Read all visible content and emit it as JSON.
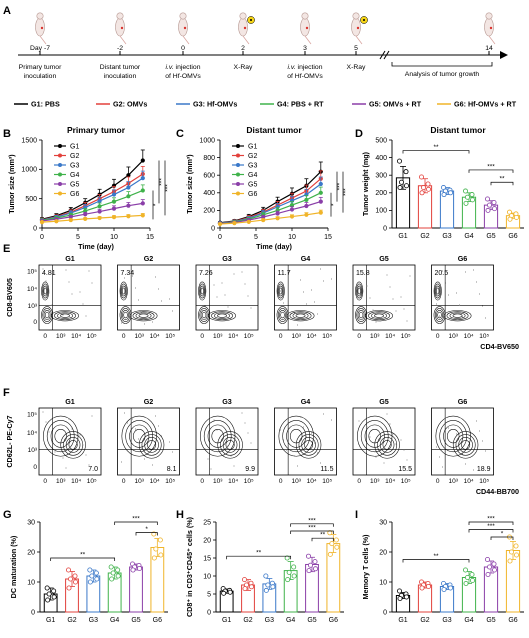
{
  "colors": {
    "G1": "#000000",
    "G2": "#e2403b",
    "G3": "#3a78c9",
    "G4": "#3fb24a",
    "G5": "#8a3ea8",
    "G6": "#f0b429"
  },
  "legend": [
    {
      "key": "G1",
      "label": "G1: PBS"
    },
    {
      "key": "G2",
      "label": "G2: OMVs"
    },
    {
      "key": "G3",
      "label": "G3: Hf-OMVs"
    },
    {
      "key": "G4",
      "label": "G4: PBS + RT"
    },
    {
      "key": "G5",
      "label": "G5: OMVs + RT"
    },
    {
      "key": "G6",
      "label": "G6: Hf-OMVs + RT"
    }
  ],
  "panel_letters": {
    "A": "A",
    "B": "B",
    "C": "C",
    "D": "D",
    "E": "E",
    "F": "F",
    "G": "G",
    "H": "H",
    "I": "I"
  },
  "timeline": {
    "events": [
      {
        "day": "Day -7",
        "label": "Primary tumor|inoculation"
      },
      {
        "day": "-2",
        "label": "Distant tumor|inoculation"
      },
      {
        "day": "0",
        "label": "i.v. injection|of Hf-OMVs"
      },
      {
        "day": "2",
        "label": "X-Ray"
      },
      {
        "day": "3",
        "label": "i.v. injection|of Hf-OMVs"
      },
      {
        "day": "5",
        "label": "X-Ray"
      },
      {
        "day": "14",
        "label": ""
      }
    ],
    "analysis_label": "Analysis of tumor growth"
  },
  "chart_data": [
    {
      "id": "B",
      "type": "line",
      "title": "Primary tumor",
      "xlabel": "Time (day)",
      "ylabel": "Tumor size (mm³)",
      "xlim": [
        0,
        15
      ],
      "ylim": [
        0,
        1500
      ],
      "xticks": [
        0,
        5,
        10,
        15
      ],
      "yticks": [
        0,
        500,
        1000,
        1500
      ],
      "x": [
        0,
        2,
        4,
        6,
        8,
        10,
        12,
        14
      ],
      "series": [
        {
          "name": "G1",
          "values": [
            150,
            210,
            300,
            430,
            570,
            720,
            900,
            1150
          ],
          "err": [
            25,
            35,
            50,
            70,
            90,
            110,
            140,
            180
          ]
        },
        {
          "name": "G2",
          "values": [
            140,
            195,
            270,
            380,
            500,
            620,
            760,
            920
          ],
          "err": [
            20,
            30,
            40,
            55,
            70,
            90,
            110,
            130
          ]
        },
        {
          "name": "G3",
          "values": [
            135,
            185,
            255,
            350,
            460,
            570,
            690,
            850
          ],
          "err": [
            20,
            28,
            38,
            50,
            65,
            80,
            100,
            120
          ]
        },
        {
          "name": "G4",
          "values": [
            130,
            170,
            220,
            290,
            370,
            450,
            540,
            640
          ],
          "err": [
            18,
            25,
            32,
            42,
            55,
            65,
            80,
            95
          ]
        },
        {
          "name": "G5",
          "values": [
            120,
            150,
            190,
            235,
            280,
            330,
            380,
            420
          ],
          "err": [
            15,
            20,
            25,
            32,
            40,
            48,
            55,
            65
          ]
        },
        {
          "name": "G6",
          "values": [
            100,
            115,
            135,
            155,
            170,
            185,
            200,
            215
          ],
          "err": [
            12,
            14,
            17,
            20,
            22,
            25,
            28,
            32
          ]
        }
      ],
      "significance": [
        "*",
        "***",
        "***"
      ]
    },
    {
      "id": "C",
      "type": "line",
      "title": "Distant tumor",
      "xlabel": "Time (day)",
      "ylabel": "Tumor size (mm³)",
      "xlim": [
        0,
        15
      ],
      "ylim": [
        0,
        1000
      ],
      "xticks": [
        0,
        5,
        10,
        15
      ],
      "yticks": [
        0,
        200,
        400,
        600,
        800,
        1000
      ],
      "x": [
        0,
        2,
        4,
        6,
        8,
        10,
        12,
        14
      ],
      "series": [
        {
          "name": "G1",
          "values": [
            60,
            80,
            130,
            200,
            300,
            390,
            480,
            640
          ],
          "err": [
            12,
            15,
            25,
            35,
            50,
            65,
            80,
            110
          ]
        },
        {
          "name": "G2",
          "values": [
            55,
            75,
            120,
            180,
            260,
            340,
            420,
            560
          ],
          "err": [
            10,
            14,
            22,
            30,
            42,
            55,
            68,
            90
          ]
        },
        {
          "name": "G3",
          "values": [
            55,
            72,
            110,
            170,
            240,
            310,
            380,
            500
          ],
          "err": [
            10,
            13,
            20,
            28,
            38,
            50,
            60,
            80
          ]
        },
        {
          "name": "G4",
          "values": [
            52,
            68,
            100,
            150,
            200,
            260,
            320,
            400
          ],
          "err": [
            9,
            12,
            18,
            24,
            32,
            40,
            50,
            65
          ]
        },
        {
          "name": "G5",
          "values": [
            50,
            62,
            90,
            125,
            165,
            210,
            250,
            300
          ],
          "err": [
            8,
            11,
            15,
            20,
            26,
            32,
            40,
            48
          ]
        },
        {
          "name": "G6",
          "values": [
            45,
            55,
            70,
            90,
            110,
            130,
            150,
            175
          ],
          "err": [
            7,
            9,
            12,
            15,
            18,
            20,
            24,
            28
          ]
        }
      ],
      "significance": [
        "*",
        "***",
        "***"
      ]
    },
    {
      "id": "D",
      "type": "bar",
      "title": "Distant tumor",
      "ylabel": "Tumor weight (mg)",
      "ylim": [
        0,
        500
      ],
      "yticks": [
        0,
        100,
        200,
        300,
        400,
        500
      ],
      "categories": [
        "G1",
        "G2",
        "G3",
        "G4",
        "G5",
        "G6"
      ],
      "values": [
        285,
        240,
        210,
        175,
        130,
        70
      ],
      "err": [
        65,
        40,
        20,
        25,
        25,
        15
      ],
      "points": [
        [
          380,
          320,
          260,
          240,
          230
        ],
        [
          290,
          250,
          230,
          220,
          200
        ],
        [
          230,
          215,
          210,
          200,
          190
        ],
        [
          210,
          190,
          175,
          160,
          140
        ],
        [
          165,
          145,
          130,
          110,
          100
        ],
        [
          90,
          80,
          70,
          60,
          50
        ]
      ],
      "brackets": [
        {
          "from": 0,
          "to": 3,
          "label": "**",
          "y": 440
        },
        {
          "from": 3,
          "to": 5,
          "label": "***",
          "y": 330
        },
        {
          "from": 4,
          "to": 5,
          "label": "**",
          "y": 260
        }
      ]
    },
    {
      "id": "G",
      "type": "bar",
      "ylabel": "DC maturation (%)",
      "ylim": [
        0,
        30
      ],
      "yticks": [
        0,
        10,
        20,
        30
      ],
      "categories": [
        "G1",
        "G2",
        "G3",
        "G4",
        "G5",
        "G6"
      ],
      "values": [
        6,
        11,
        12,
        13,
        15,
        21.5
      ],
      "err": [
        2,
        2.5,
        2,
        2,
        1,
        3
      ],
      "points": [
        [
          8,
          7,
          6,
          5,
          4
        ],
        [
          14,
          12,
          11,
          10,
          8
        ],
        [
          14,
          13,
          12,
          11,
          10
        ],
        [
          15,
          14,
          13,
          12,
          11
        ],
        [
          16,
          15.5,
          15,
          14.5,
          14
        ],
        [
          26,
          24,
          21,
          19,
          18
        ]
      ],
      "brackets": [
        {
          "from": 0,
          "to": 3,
          "label": "**",
          "y": 18
        },
        {
          "from": 3,
          "to": 5,
          "label": "***",
          "y": 30
        },
        {
          "from": 4,
          "to": 5,
          "label": "*",
          "y": 26.5
        }
      ]
    },
    {
      "id": "H",
      "type": "bar",
      "ylabel": "CD8⁺ in CD3⁺CD45⁺ cells (%)",
      "ylim": [
        0,
        25
      ],
      "yticks": [
        0,
        5,
        10,
        15,
        20,
        25
      ],
      "categories": [
        "G1",
        "G2",
        "G3",
        "G4",
        "G5",
        "G6"
      ],
      "values": [
        5.8,
        7.5,
        7.8,
        11.5,
        13.2,
        19
      ],
      "err": [
        0.6,
        1.5,
        1.5,
        2.5,
        2,
        2.5
      ],
      "points": [
        [
          6.5,
          6,
          5.8,
          5.5,
          5.2
        ],
        [
          9,
          8,
          7.5,
          7,
          6.5
        ],
        [
          10,
          8,
          7.5,
          7,
          6
        ],
        [
          15,
          12.5,
          11,
          10,
          9
        ],
        [
          15.5,
          14,
          13,
          12,
          11.5
        ],
        [
          22,
          20,
          19,
          18,
          16
        ]
      ],
      "brackets": [
        {
          "from": 0,
          "to": 3,
          "label": "**",
          "y": 15.5
        },
        {
          "from": 3,
          "to": 5,
          "label": "***",
          "y": 24.5
        },
        {
          "from": 3,
          "to": 5,
          "label": "***",
          "y": 22.5
        },
        {
          "from": 4,
          "to": 5,
          "label": "**",
          "y": 20.5
        }
      ]
    },
    {
      "id": "I",
      "type": "bar",
      "ylabel": "Memory T cells (%)",
      "ylim": [
        0,
        30
      ],
      "yticks": [
        0,
        10,
        20,
        30
      ],
      "categories": [
        "G1",
        "G2",
        "G3",
        "G4",
        "G5",
        "G6"
      ],
      "values": [
        5.5,
        9,
        8.5,
        11.5,
        15,
        20.5
      ],
      "err": [
        1,
        1,
        1,
        2,
        2,
        3
      ],
      "points": [
        [
          7,
          6,
          5.5,
          5,
          4.5
        ],
        [
          10,
          9.5,
          9,
          8.5,
          8
        ],
        [
          9.5,
          9,
          8.5,
          8,
          7.5
        ],
        [
          14,
          12.5,
          11.5,
          10.5,
          9.5
        ],
        [
          17.5,
          16,
          15,
          14,
          12.5
        ],
        [
          25,
          22,
          20,
          19,
          17
        ]
      ],
      "brackets": [
        {
          "from": 0,
          "to": 3,
          "label": "**",
          "y": 17.5
        },
        {
          "from": 3,
          "to": 5,
          "label": "***",
          "y": 30
        },
        {
          "from": 3,
          "to": 5,
          "label": "***",
          "y": 27.5
        },
        {
          "from": 4,
          "to": 5,
          "label": "*",
          "y": 25
        }
      ]
    }
  ],
  "flow_E": {
    "ylabel": "CD8-BV605",
    "xlabel": "CD4-BV650",
    "yticks": [
      "10⁵",
      "10⁴",
      "10³",
      "0"
    ],
    "xticks": [
      "0",
      "10³",
      "10⁴",
      "10⁵"
    ],
    "panels": [
      {
        "title": "G1",
        "value": "4.81"
      },
      {
        "title": "G2",
        "value": "7.34"
      },
      {
        "title": "G3",
        "value": "7.26"
      },
      {
        "title": "G4",
        "value": "11.7"
      },
      {
        "title": "G5",
        "value": "15.8"
      },
      {
        "title": "G6",
        "value": "20.5"
      }
    ]
  },
  "flow_F": {
    "ylabel": "CD62L- PE-Cy7",
    "xlabel": "CD44-BB700",
    "yticks": [
      "10⁵",
      "10⁴",
      "10³",
      "0"
    ],
    "xticks": [
      "0",
      "10³",
      "10⁴",
      "10⁵"
    ],
    "panels": [
      {
        "title": "G1",
        "value": "7.0"
      },
      {
        "title": "G2",
        "value": "8.1"
      },
      {
        "title": "G3",
        "value": "9.9"
      },
      {
        "title": "G4",
        "value": "11.5"
      },
      {
        "title": "G5",
        "value": "15.5"
      },
      {
        "title": "G6",
        "value": "18.9"
      }
    ]
  }
}
